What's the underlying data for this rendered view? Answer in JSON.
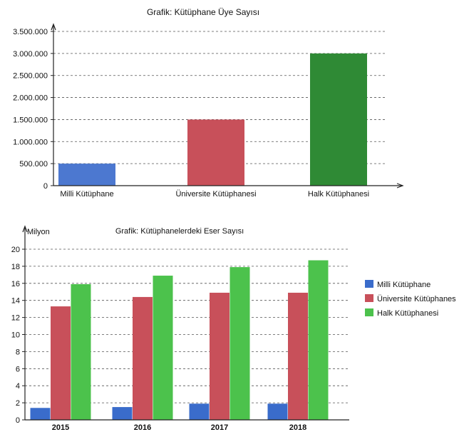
{
  "chart_data": [
    {
      "type": "bar",
      "title": "Grafik: Kütüphane Üye Sayısı",
      "xlabel": "",
      "ylabel": "",
      "ylim": [
        0,
        3500000
      ],
      "yticks": [
        "0",
        "500.000",
        "1.000.000",
        "1.500.000",
        "2.000.000",
        "2.500.000",
        "3.000.000",
        "3.500.000"
      ],
      "grid": true,
      "categories": [
        "Milli Kütüphane",
        "Üniversite Kütüphanesi",
        "Halk Kütüphanesi"
      ],
      "values": [
        500000,
        1500000,
        3000000
      ],
      "colors": [
        "#4c78d0",
        "#c8505a",
        "#2f8a35"
      ]
    },
    {
      "type": "bar",
      "title": "Grafik: Kütüphanelerdeki Eser Sayısı",
      "xlabel": "",
      "ylabel": "Milyon",
      "ylim": [
        0,
        20
      ],
      "yticks": [
        "0",
        "2",
        "4",
        "6",
        "8",
        "10",
        "12",
        "14",
        "16",
        "18",
        "20"
      ],
      "grid": true,
      "legend_position": "right",
      "categories": [
        "2015",
        "2016",
        "2017",
        "2018"
      ],
      "series": [
        {
          "name": "Milli Kütüphane",
          "color": "#3a6ccb",
          "values": [
            1.4,
            1.5,
            1.9,
            1.9
          ]
        },
        {
          "name": "Üniversite Kütüphanes",
          "color": "#c8505a",
          "values": [
            13.3,
            14.4,
            14.9,
            14.9
          ]
        },
        {
          "name": "Halk Kütüphanesi",
          "color": "#4cc24c",
          "values": [
            15.9,
            16.9,
            17.9,
            18.7
          ]
        }
      ]
    }
  ]
}
